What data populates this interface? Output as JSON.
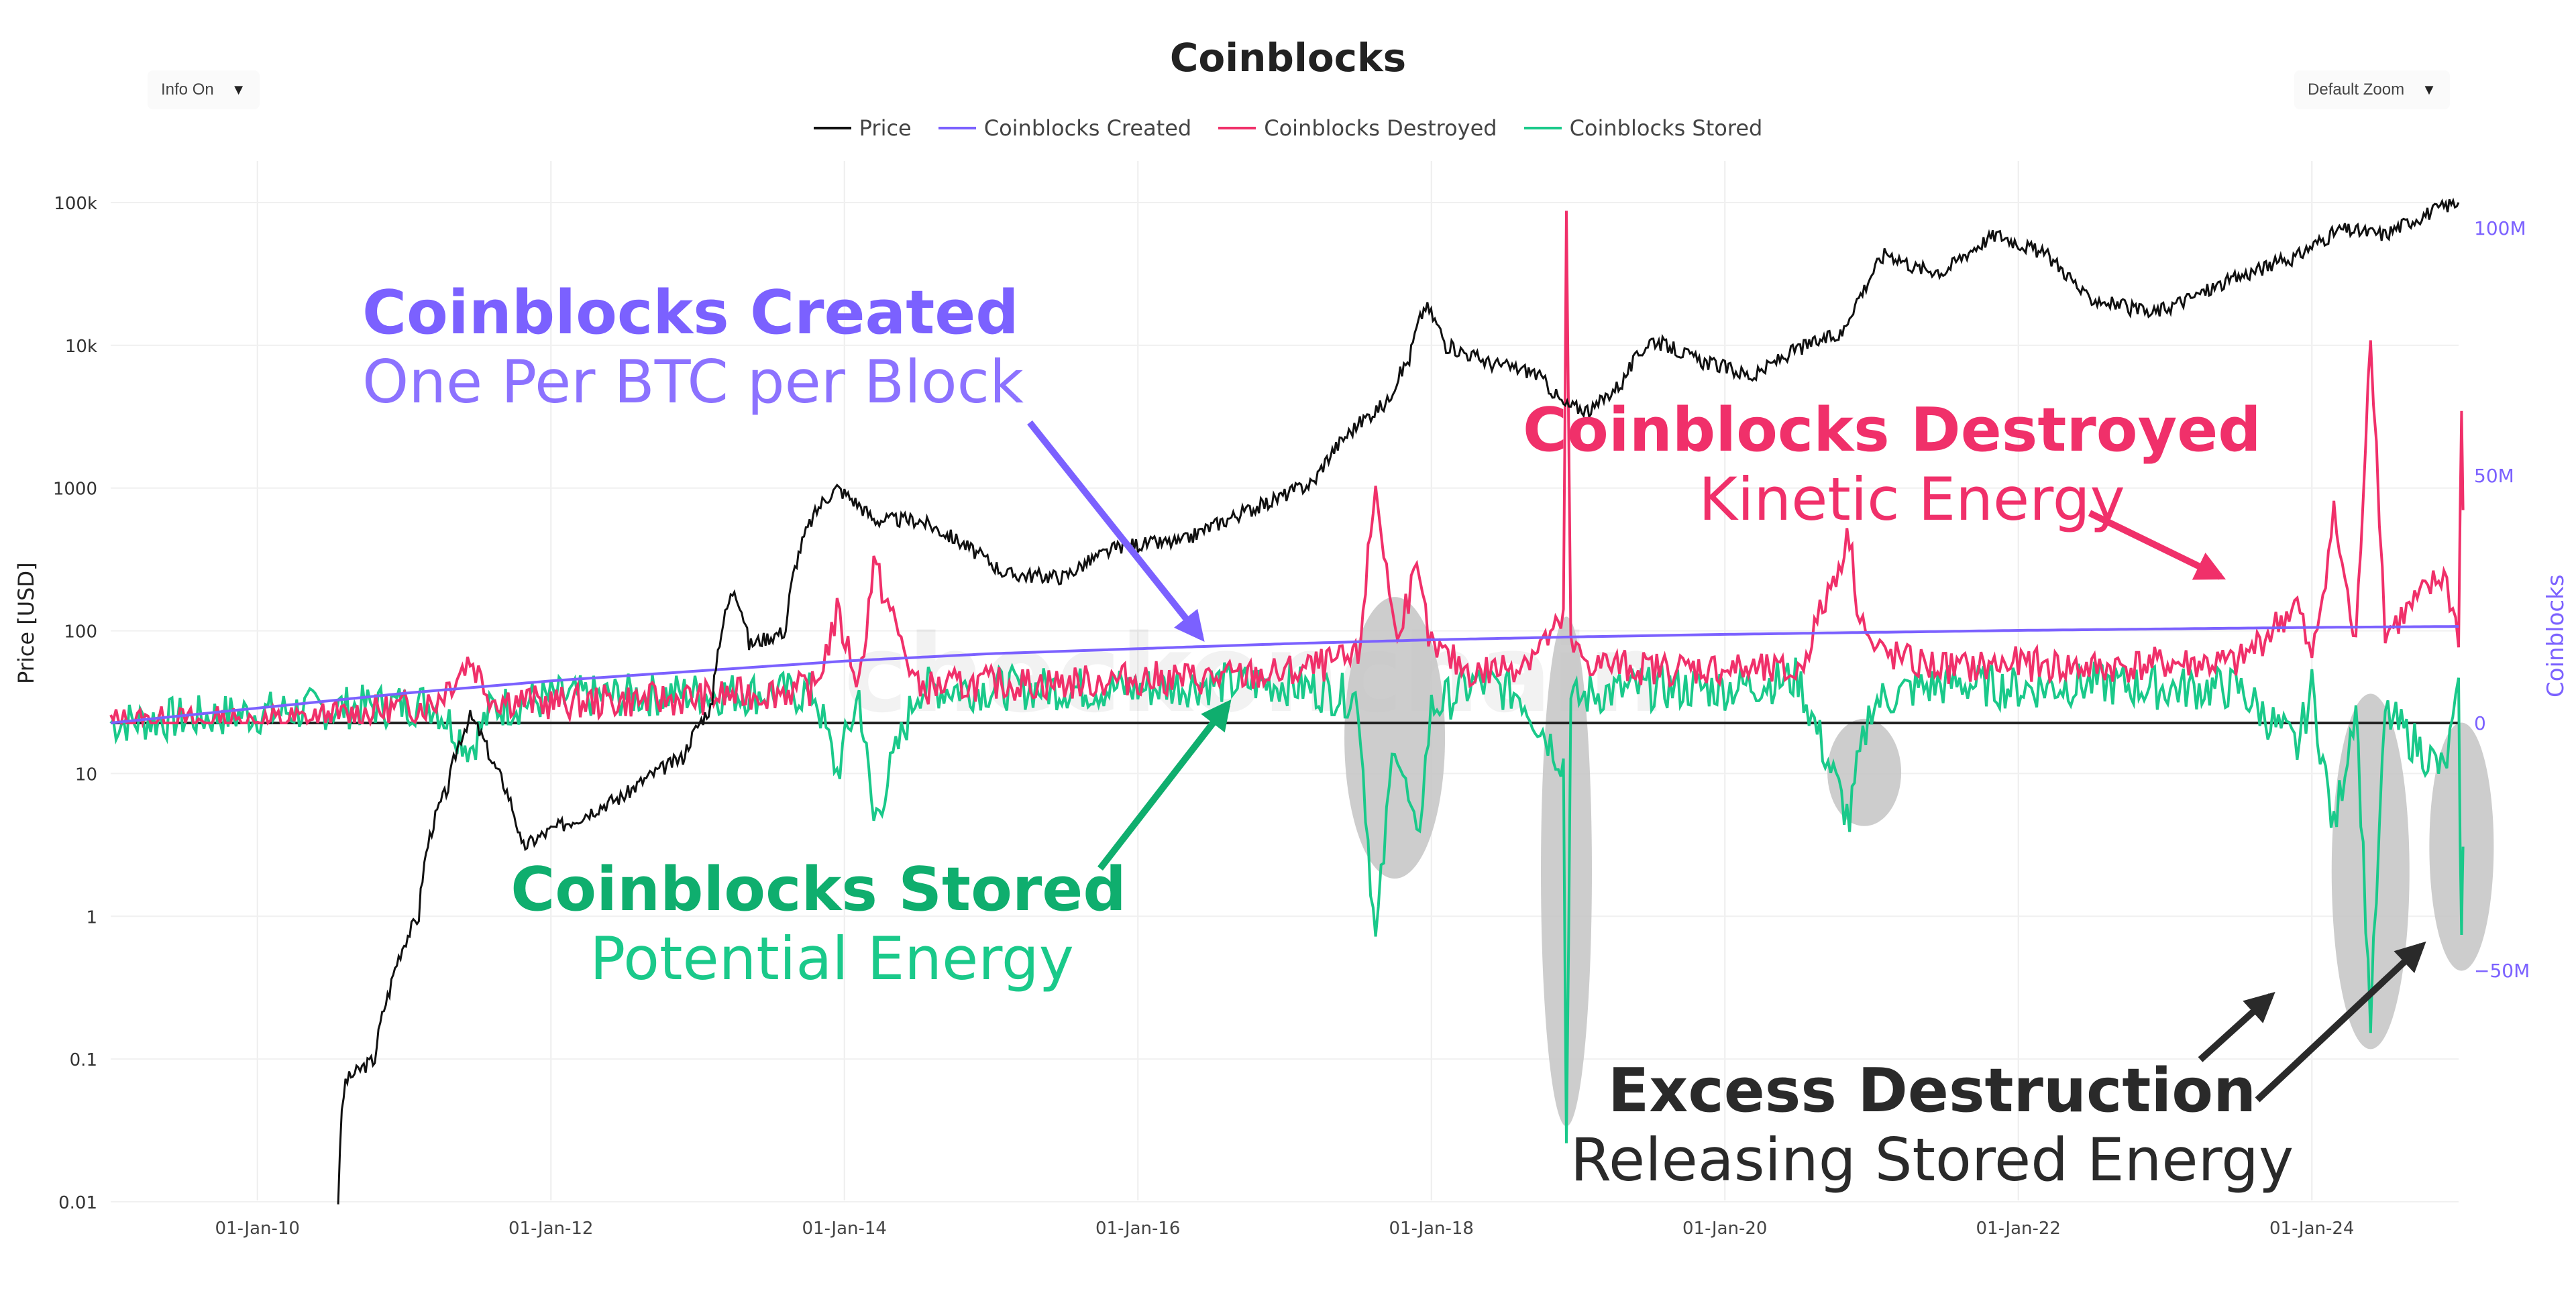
{
  "header": {
    "title": "Coinblocks",
    "info_dropdown": "Info On",
    "zoom_dropdown": "Default Zoom"
  },
  "colors": {
    "price": "#111111",
    "created": "#7b61ff",
    "destroyed": "#f0306a",
    "stored": "#1ac98a",
    "stored_label": "#0fae6e",
    "excess": "#2a2a2a",
    "highlight": "#c4c4c4"
  },
  "annotations": {
    "created": {
      "heading": "Coinblocks Created",
      "sub": "One Per BTC per Block"
    },
    "destroyed": {
      "heading": "Coinblocks Destroyed",
      "sub": "Kinetic Energy"
    },
    "stored": {
      "heading": "Coinblocks Stored",
      "sub": "Potential Energy"
    },
    "excess": {
      "heading": "Excess Destruction",
      "sub": "Releasing Stored Energy"
    }
  },
  "watermark": "checkonchain",
  "chart_data": {
    "type": "line",
    "title": "Coinblocks",
    "y_left": {
      "label": "Price [USD]",
      "scale": "log",
      "ticks": [
        "0.01",
        "0.1",
        "1",
        "10",
        "100",
        "1000",
        "10k",
        "100k"
      ],
      "tick_values": [
        0.01,
        0.1,
        1,
        10,
        100,
        1000,
        10000,
        100000
      ]
    },
    "y_right": {
      "label": "Coinblocks",
      "ticks": [
        "−50M",
        "0",
        "50M",
        "100M"
      ],
      "tick_values": [
        -50000000,
        0,
        50000000,
        100000000
      ]
    },
    "x_ticks": [
      "01-Jan-10",
      "01-Jan-12",
      "01-Jan-14",
      "01-Jan-16",
      "01-Jan-18",
      "01-Jan-20",
      "01-Jan-22",
      "01-Jan-24"
    ],
    "x_tick_years": [
      2010,
      2012,
      2014,
      2016,
      2018,
      2020,
      2022,
      2024
    ],
    "x_range": [
      2009.0,
      2025.0
    ],
    "legend": [
      "Price",
      "Coinblocks Created",
      "Coinblocks Destroyed",
      "Coinblocks Stored"
    ],
    "legend_position": "top-center",
    "series": [
      {
        "name": "Price",
        "axis": "left",
        "x": [
          2010.55,
          2010.6,
          2010.8,
          2010.9,
          2011.1,
          2011.3,
          2011.45,
          2011.6,
          2011.8,
          2011.9,
          2012.2,
          2012.5,
          2012.9,
          2013.1,
          2013.25,
          2013.35,
          2013.6,
          2013.85,
          2013.95,
          2014.2,
          2014.5,
          2014.9,
          2015.1,
          2015.5,
          2015.9,
          2016.3,
          2016.6,
          2016.9,
          2017.2,
          2017.45,
          2017.7,
          2017.85,
          2017.96,
          2018.1,
          2018.4,
          2018.7,
          2018.9,
          2019.1,
          2019.3,
          2019.5,
          2019.8,
          2020.2,
          2020.5,
          2020.8,
          2020.95,
          2021.1,
          2021.3,
          2021.5,
          2021.85,
          2022.2,
          2022.45,
          2022.9,
          2023.2,
          2023.5,
          2023.9,
          2024.2,
          2024.5,
          2024.95,
          2025.0
        ],
        "y": [
          0.01,
          0.07,
          0.1,
          0.3,
          1,
          8,
          25,
          12,
          3,
          3.5,
          5,
          7,
          13,
          30,
          200,
          80,
          100,
          800,
          1000,
          600,
          600,
          350,
          250,
          240,
          400,
          420,
          600,
          800,
          1100,
          2500,
          4000,
          8000,
          19000,
          10000,
          7500,
          6500,
          3800,
          3500,
          5500,
          11000,
          8000,
          6000,
          9500,
          12000,
          25000,
          45000,
          35000,
          33000,
          60000,
          42000,
          22000,
          16500,
          22000,
          30000,
          42000,
          65000,
          60000,
          98000,
          100000
        ]
      },
      {
        "name": "Coinblocks Created",
        "axis": "right",
        "x": [
          2009.0,
          2010.0,
          2011.0,
          2012.0,
          2013.0,
          2014.0,
          2015.0,
          2016.0,
          2017.0,
          2018.0,
          2019.0,
          2020.0,
          2021.0,
          2022.0,
          2023.0,
          2024.0,
          2025.0
        ],
        "y": [
          0,
          3000000,
          6000000,
          8500000,
          10500000,
          12500000,
          14000000,
          15000000,
          16000000,
          16800000,
          17400000,
          17900000,
          18300000,
          18700000,
          19000000,
          19300000,
          19500000
        ]
      },
      {
        "name": "Coinblocks Destroyed",
        "axis": "right",
        "x": [
          2009.0,
          2010.0,
          2010.5,
          2011.2,
          2011.45,
          2011.6,
          2012.0,
          2013.0,
          2013.8,
          2013.95,
          2014.1,
          2014.2,
          2014.5,
          2015.0,
          2015.5,
          2016.0,
          2016.5,
          2017.0,
          2017.5,
          2017.62,
          2017.75,
          2017.9,
          2018.0,
          2018.3,
          2018.6,
          2018.9,
          2018.92,
          2018.95,
          2019.1,
          2019.5,
          2020.0,
          2020.5,
          2020.85,
          2020.9,
          2021.0,
          2021.3,
          2021.6,
          2022.0,
          2022.5,
          2023.0,
          2023.5,
          2023.9,
          2024.0,
          2024.15,
          2024.3,
          2024.4,
          2024.5,
          2024.9,
          2025.0,
          2025.02,
          2025.03
        ],
        "y": [
          0,
          0,
          1000000,
          4000000,
          13000000,
          5000000,
          4000000,
          5000000,
          7000000,
          22000000,
          8000000,
          32000000,
          7000000,
          8000000,
          8000000,
          9000000,
          9000000,
          10000000,
          13000000,
          48000000,
          18000000,
          30000000,
          15000000,
          10000000,
          12000000,
          20000000,
          103000000,
          15000000,
          12000000,
          11000000,
          11000000,
          10000000,
          38000000,
          25000000,
          15000000,
          12000000,
          11000000,
          12000000,
          11000000,
          12000000,
          12000000,
          24000000,
          12000000,
          42000000,
          15000000,
          80000000,
          18000000,
          30000000,
          18000000,
          63000000,
          43000000
        ]
      },
      {
        "name": "Coinblocks Stored",
        "axis": "right",
        "x": [
          2009.0,
          2010.0,
          2010.5,
          2011.2,
          2011.45,
          2011.6,
          2012.0,
          2013.0,
          2013.8,
          2013.95,
          2014.1,
          2014.2,
          2014.5,
          2015.0,
          2015.5,
          2016.0,
          2016.5,
          2017.0,
          2017.5,
          2017.62,
          2017.75,
          2017.9,
          2018.0,
          2018.3,
          2018.6,
          2018.9,
          2018.92,
          2018.95,
          2019.1,
          2019.5,
          2020.0,
          2020.5,
          2020.85,
          2020.9,
          2021.0,
          2021.3,
          2021.6,
          2022.0,
          2022.5,
          2023.0,
          2023.5,
          2023.9,
          2024.0,
          2024.15,
          2024.3,
          2024.4,
          2024.5,
          2024.9,
          2025.0,
          2025.02,
          2025.03
        ],
        "y": [
          0,
          2000000,
          3000000,
          4000000,
          -5000000,
          3000000,
          5000000,
          6000000,
          6000000,
          -10000000,
          6000000,
          -20000000,
          7000000,
          7000000,
          7000000,
          7000000,
          8000000,
          8000000,
          5000000,
          -45000000,
          -2000000,
          -25000000,
          3000000,
          8000000,
          6000000,
          -8000000,
          -85000000,
          4000000,
          6000000,
          7000000,
          7000000,
          9000000,
          -20000000,
          -10000000,
          4000000,
          7000000,
          8000000,
          7000000,
          8000000,
          7000000,
          7000000,
          -5000000,
          7000000,
          -22000000,
          5000000,
          -60000000,
          2000000,
          -10000000,
          5000000,
          -45000000,
          -25000000
        ]
      }
    ]
  }
}
